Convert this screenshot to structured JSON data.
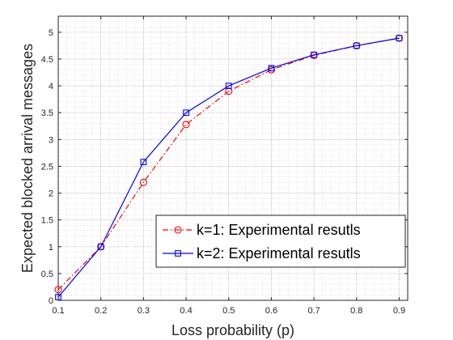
{
  "colors": {
    "series1": "#ff0000",
    "series2": "#0000ff",
    "axis": "#262626",
    "grid": "#bdbdbd",
    "background": "#ffffff"
  },
  "chart_data": {
    "type": "line",
    "title": "",
    "xlabel": "Loss probability (p)",
    "ylabel": "Expected blocked arrival messages",
    "xlim": [
      0.1,
      0.92
    ],
    "ylim": [
      0,
      5.3
    ],
    "xticks": [
      0.1,
      0.2,
      0.3,
      0.4,
      0.5,
      0.6,
      0.7,
      0.8,
      0.9
    ],
    "xtick_labels": [
      "0.1",
      "0.2",
      "0.3",
      "0.4",
      "0.5",
      "0.6",
      "0.7",
      "0.8",
      "0.9"
    ],
    "yticks": [
      0,
      0.5,
      1,
      1.5,
      2,
      2.5,
      3,
      3.5,
      4,
      4.5,
      5
    ],
    "ytick_labels": [
      "0",
      "0.5",
      "1",
      "1.5",
      "2",
      "2.5",
      "3",
      "3.5",
      "4",
      "4.5",
      "5"
    ],
    "grid": true,
    "minor_grid": true,
    "legend_position": "lower-right",
    "x": [
      0.1,
      0.2,
      0.3,
      0.4,
      0.5,
      0.6,
      0.7,
      0.8,
      0.9
    ],
    "series": [
      {
        "name": "k=1: Experimental resutls",
        "values": [
          0.2,
          1.0,
          2.2,
          3.28,
          3.9,
          4.3,
          4.57,
          4.75,
          4.89
        ],
        "color": "#ff0000",
        "line_style": "dash-dot",
        "marker": "circle"
      },
      {
        "name": "k=2: Experimental resutls",
        "values": [
          0.06,
          1.0,
          2.58,
          3.5,
          4.0,
          4.33,
          4.58,
          4.75,
          4.89
        ],
        "color": "#0000ff",
        "line_style": "solid",
        "marker": "square"
      }
    ]
  }
}
